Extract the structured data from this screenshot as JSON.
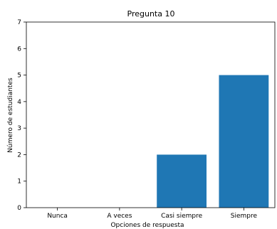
{
  "chart_data": {
    "type": "bar",
    "title": "Pregunta 10",
    "xlabel": "Opciones de respuesta",
    "ylabel": "Número de estudiantes",
    "categories": [
      "Nunca",
      "A veces",
      "Casi siempre",
      "Siempre"
    ],
    "values": [
      0,
      0,
      2,
      5
    ],
    "ylim": [
      0,
      7
    ],
    "yticks": [
      0,
      1,
      2,
      3,
      4,
      5,
      6,
      7
    ],
    "grid": false,
    "bar_color": "#1f77b4"
  }
}
